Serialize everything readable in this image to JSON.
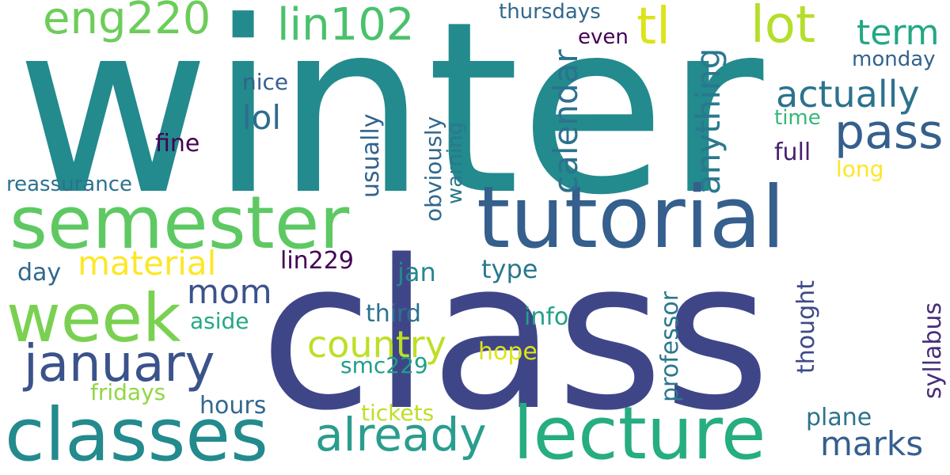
{
  "words": {
    "winter": {
      "text": "winter",
      "color": "#238a8d"
    },
    "class": {
      "text": "class",
      "color": "#3f4688"
    },
    "tutorial": {
      "text": "tutorial",
      "color": "#355f8d"
    },
    "semester": {
      "text": "semester",
      "color": "#5ec962"
    },
    "classes": {
      "text": "classes",
      "color": "#238a8d"
    },
    "lecture": {
      "text": "lecture",
      "color": "#26ad81"
    },
    "week": {
      "text": "week",
      "color": "#7ad151"
    },
    "january": {
      "text": "january",
      "color": "#3b528b"
    },
    "eng220": {
      "text": "eng220",
      "color": "#6ccd5a"
    },
    "lin102": {
      "text": "lin102",
      "color": "#4ac16d"
    },
    "lot": {
      "text": "lot",
      "color": "#b5de2b"
    },
    "tl": {
      "text": "tl",
      "color": "#dde318"
    },
    "pass": {
      "text": "pass",
      "color": "#355f8d"
    },
    "already": {
      "text": "already",
      "color": "#2a9d8e"
    },
    "country": {
      "text": "country",
      "color": "#bddf26"
    },
    "actually": {
      "text": "actually",
      "color": "#2c728e"
    },
    "term": {
      "text": "term",
      "color": "#22a884"
    },
    "material": {
      "text": "material",
      "color": "#fde725"
    },
    "mom": {
      "text": "mom",
      "color": "#3b528b"
    },
    "marks": {
      "text": "marks",
      "color": "#355f8d"
    },
    "anything": {
      "text": "anything",
      "color": "#2a788e"
    },
    "calendar": {
      "text": "calendar",
      "color": "#2c728e"
    },
    "lol": {
      "text": "lol",
      "color": "#2f6c8e"
    },
    "thursdays": {
      "text": "thursdays",
      "color": "#31688e"
    },
    "even": {
      "text": "even",
      "color": "#440154"
    },
    "monday": {
      "text": "monday",
      "color": "#33638d"
    },
    "time": {
      "text": "time",
      "color": "#35b779"
    },
    "full": {
      "text": "full",
      "color": "#481f70"
    },
    "long": {
      "text": "long",
      "color": "#fde725"
    },
    "nice": {
      "text": "nice",
      "color": "#355f8d"
    },
    "fine": {
      "text": "fine",
      "color": "#440154"
    },
    "reassurance": {
      "text": "reassurance",
      "color": "#2c728e"
    },
    "usually": {
      "text": "usually",
      "color": "#33638d"
    },
    "obviously": {
      "text": "obviously",
      "color": "#31688e"
    },
    "warning": {
      "text": "warning",
      "color": "#2a788e"
    },
    "lin229": {
      "text": "lin229",
      "color": "#440154"
    },
    "day": {
      "text": "day",
      "color": "#31688e"
    },
    "jan": {
      "text": "jan",
      "color": "#23898e"
    },
    "type": {
      "text": "type",
      "color": "#2a788e"
    },
    "third": {
      "text": "third",
      "color": "#2c728e"
    },
    "info": {
      "text": "info",
      "color": "#1fa187"
    },
    "aside": {
      "text": "aside",
      "color": "#22a884"
    },
    "hope": {
      "text": "hope",
      "color": "#dde318"
    },
    "smc229": {
      "text": "smc229",
      "color": "#1f9e89"
    },
    "fridays": {
      "text": "fridays",
      "color": "#90d743"
    },
    "hours": {
      "text": "hours",
      "color": "#31688e"
    },
    "tickets": {
      "text": "tickets",
      "color": "#bddf26"
    },
    "plane": {
      "text": "plane",
      "color": "#2c728e"
    },
    "professor": {
      "text": "professor",
      "color": "#2a788e"
    },
    "thought": {
      "text": "thought",
      "color": "#3e4989"
    },
    "syllabus": {
      "text": "syllabus",
      "color": "#472d7b"
    }
  }
}
